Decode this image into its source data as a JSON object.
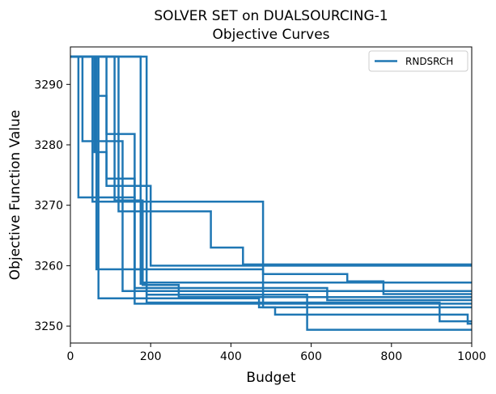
{
  "chart_data": {
    "type": "line",
    "title_line1": "SOLVER SET on DUALSOURCING-1",
    "title_line2": "Objective Curves",
    "xlabel": "Budget",
    "ylabel": "Objective Function Value",
    "xlim": [
      0,
      1000
    ],
    "ylim": [
      3247.2,
      3296.2
    ],
    "x_ticks": [
      0,
      200,
      400,
      600,
      800,
      1000
    ],
    "y_ticks": [
      3250,
      3260,
      3270,
      3280,
      3290
    ],
    "grid": false,
    "legend_position": "top-right",
    "color": "#1f77b4",
    "legend": [
      "RNDSRCH"
    ],
    "series": [
      {
        "points": [
          [
            0,
            3294.6
          ],
          [
            20,
            3294.6
          ],
          [
            20,
            3271.3
          ],
          [
            160,
            3271.3
          ],
          [
            160,
            3253.7
          ],
          [
            1000,
            3253.7
          ]
        ]
      },
      {
        "points": [
          [
            0,
            3294.6
          ],
          [
            30,
            3294.6
          ],
          [
            30,
            3280.6
          ],
          [
            130,
            3280.6
          ],
          [
            130,
            3255.8
          ],
          [
            1000,
            3255.8
          ]
        ]
      },
      {
        "points": [
          [
            0,
            3294.6
          ],
          [
            60,
            3294.6
          ],
          [
            60,
            3278.8
          ],
          [
            90,
            3278.8
          ],
          [
            90,
            3274.4
          ],
          [
            160,
            3274.4
          ],
          [
            160,
            3256.3
          ],
          [
            640,
            3256.3
          ],
          [
            640,
            3254.3
          ],
          [
            1000,
            3254.3
          ]
        ]
      },
      {
        "points": [
          [
            0,
            3294.6
          ],
          [
            70,
            3294.6
          ],
          [
            70,
            3288.1
          ],
          [
            90,
            3288.1
          ],
          [
            90,
            3273.2
          ],
          [
            200,
            3273.2
          ],
          [
            200,
            3260.0
          ],
          [
            1000,
            3260.0
          ]
        ]
      },
      {
        "points": [
          [
            0,
            3294.6
          ],
          [
            90,
            3294.6
          ],
          [
            90,
            3281.8
          ],
          [
            160,
            3281.8
          ],
          [
            160,
            3259.4
          ],
          [
            480,
            3259.4
          ],
          [
            480,
            3253.1
          ],
          [
            1000,
            3253.1
          ]
        ]
      },
      {
        "points": [
          [
            0,
            3294.6
          ],
          [
            120,
            3294.6
          ],
          [
            120,
            3269.0
          ],
          [
            350,
            3269.0
          ],
          [
            350,
            3263.0
          ],
          [
            430,
            3263.0
          ],
          [
            430,
            3260.2
          ],
          [
            1000,
            3260.2
          ]
        ]
      },
      {
        "points": [
          [
            0,
            3294.6
          ],
          [
            55,
            3294.6
          ],
          [
            55,
            3270.6
          ],
          [
            480,
            3270.6
          ],
          [
            480,
            3258.6
          ],
          [
            690,
            3258.6
          ],
          [
            690,
            3257.4
          ],
          [
            780,
            3257.4
          ],
          [
            780,
            3255.3
          ],
          [
            1000,
            3255.3
          ]
        ]
      },
      {
        "points": [
          [
            0,
            3294.6
          ],
          [
            110,
            3294.6
          ],
          [
            110,
            3270.8
          ],
          [
            180,
            3270.8
          ],
          [
            180,
            3256.8
          ],
          [
            270,
            3256.8
          ],
          [
            270,
            3254.8
          ],
          [
            1000,
            3254.8
          ]
        ]
      },
      {
        "points": [
          [
            0,
            3294.6
          ],
          [
            65,
            3294.6
          ],
          [
            65,
            3259.4
          ],
          [
            180,
            3259.4
          ],
          [
            180,
            3257.2
          ],
          [
            1000,
            3257.2
          ]
        ]
      },
      {
        "points": [
          [
            0,
            3294.6
          ],
          [
            70,
            3294.6
          ],
          [
            70,
            3254.6
          ],
          [
            470,
            3254.6
          ],
          [
            470,
            3253.1
          ],
          [
            510,
            3253.1
          ],
          [
            510,
            3251.9
          ],
          [
            990,
            3251.9
          ],
          [
            990,
            3250.4
          ],
          [
            1000,
            3250.4
          ]
        ]
      },
      {
        "points": [
          [
            0,
            3294.6
          ],
          [
            175,
            3294.6
          ],
          [
            175,
            3257.0
          ],
          [
            190,
            3257.0
          ],
          [
            190,
            3253.9
          ],
          [
            920,
            3253.9
          ],
          [
            920,
            3250.8
          ],
          [
            1000,
            3250.8
          ]
        ]
      },
      {
        "points": [
          [
            0,
            3294.6
          ],
          [
            190,
            3294.6
          ],
          [
            190,
            3255.2
          ],
          [
            590,
            3255.2
          ],
          [
            590,
            3249.4
          ],
          [
            1000,
            3249.4
          ]
        ]
      }
    ]
  }
}
